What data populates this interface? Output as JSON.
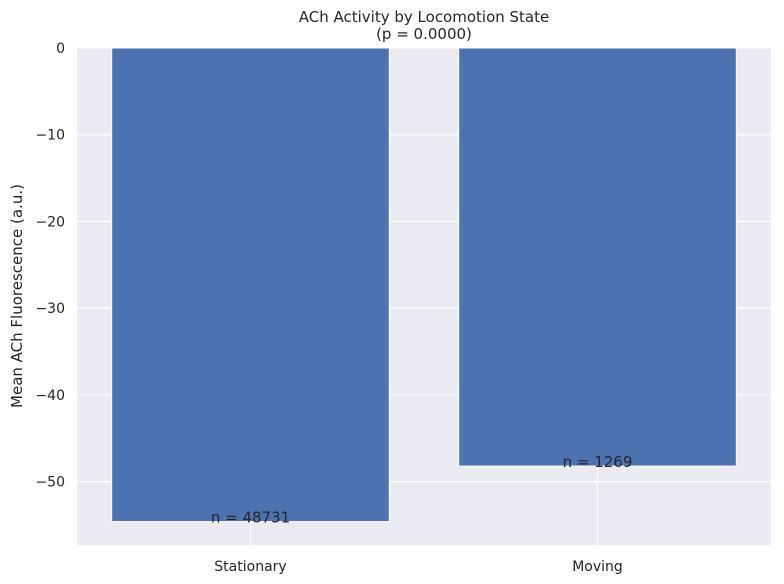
{
  "chart_data": {
    "type": "bar",
    "title": "ACh Activity by Locomotion State",
    "subtitle": "(p = 0.0000)",
    "xlabel": "",
    "ylabel": "Mean ACh Fluorescence (a.u.)",
    "categories": [
      "Stationary",
      "Moving"
    ],
    "values": [
      -54.6,
      -48.2
    ],
    "bar_labels": [
      "n = 48731",
      "n = 1269"
    ],
    "ylim": [
      -57.3,
      0
    ],
    "yticks": [
      0,
      -10,
      -20,
      -30,
      -40,
      -50
    ],
    "ytick_labels": [
      "0",
      "−10",
      "−20",
      "−30",
      "−40",
      "−50"
    ],
    "grid": true,
    "legend": "none",
    "colors": {
      "bar": "#4c72b0",
      "plot_background": "#eaeaf2",
      "grid": "#ffffff",
      "text": "#262626"
    }
  }
}
